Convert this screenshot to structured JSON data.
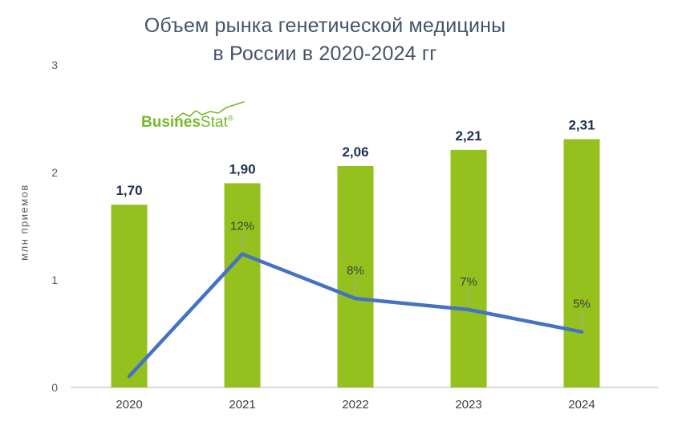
{
  "title": {
    "line1": "Объем рынка генетической медицины",
    "line2": "в России в 2020-2024 гг"
  },
  "logo": {
    "brand_bold": "Busines",
    "brand_light": "Stat",
    "registered": "®"
  },
  "colors": {
    "bar": "#95C11F",
    "line": "#4472C4",
    "title": "#44546A",
    "value_label": "#203052",
    "pct_label": "#404040",
    "tick_label": "#595959",
    "year_label": "#3F3F3F",
    "axis_line": "#D9D9D9",
    "leader": "#A6A6A6",
    "logo_green": "#76B82A"
  },
  "chart_data": {
    "type": "bar",
    "title": "Объем рынка генетической медицины в России в 2020-2024 гг",
    "categories": [
      "2020",
      "2021",
      "2022",
      "2023",
      "2024"
    ],
    "series": [
      {
        "name": "volume",
        "type": "bar",
        "values": [
          1.7,
          1.9,
          2.06,
          2.21,
          2.31
        ],
        "labels": [
          "1,70",
          "1,90",
          "2,06",
          "2,21",
          "2,31"
        ]
      },
      {
        "name": "growth_rate_pct",
        "type": "line",
        "values": [
          1,
          12,
          8,
          7,
          5
        ],
        "labels": [
          "",
          "12%",
          "8%",
          "7%",
          "5%"
        ]
      }
    ],
    "xlabel": "",
    "ylabel": "млн приемов",
    "y_ticks": [
      "0",
      "1",
      "2",
      "3"
    ],
    "ylim": [
      0,
      3
    ],
    "y2lim": [
      0,
      29
    ],
    "grid": false,
    "legend": "none"
  }
}
